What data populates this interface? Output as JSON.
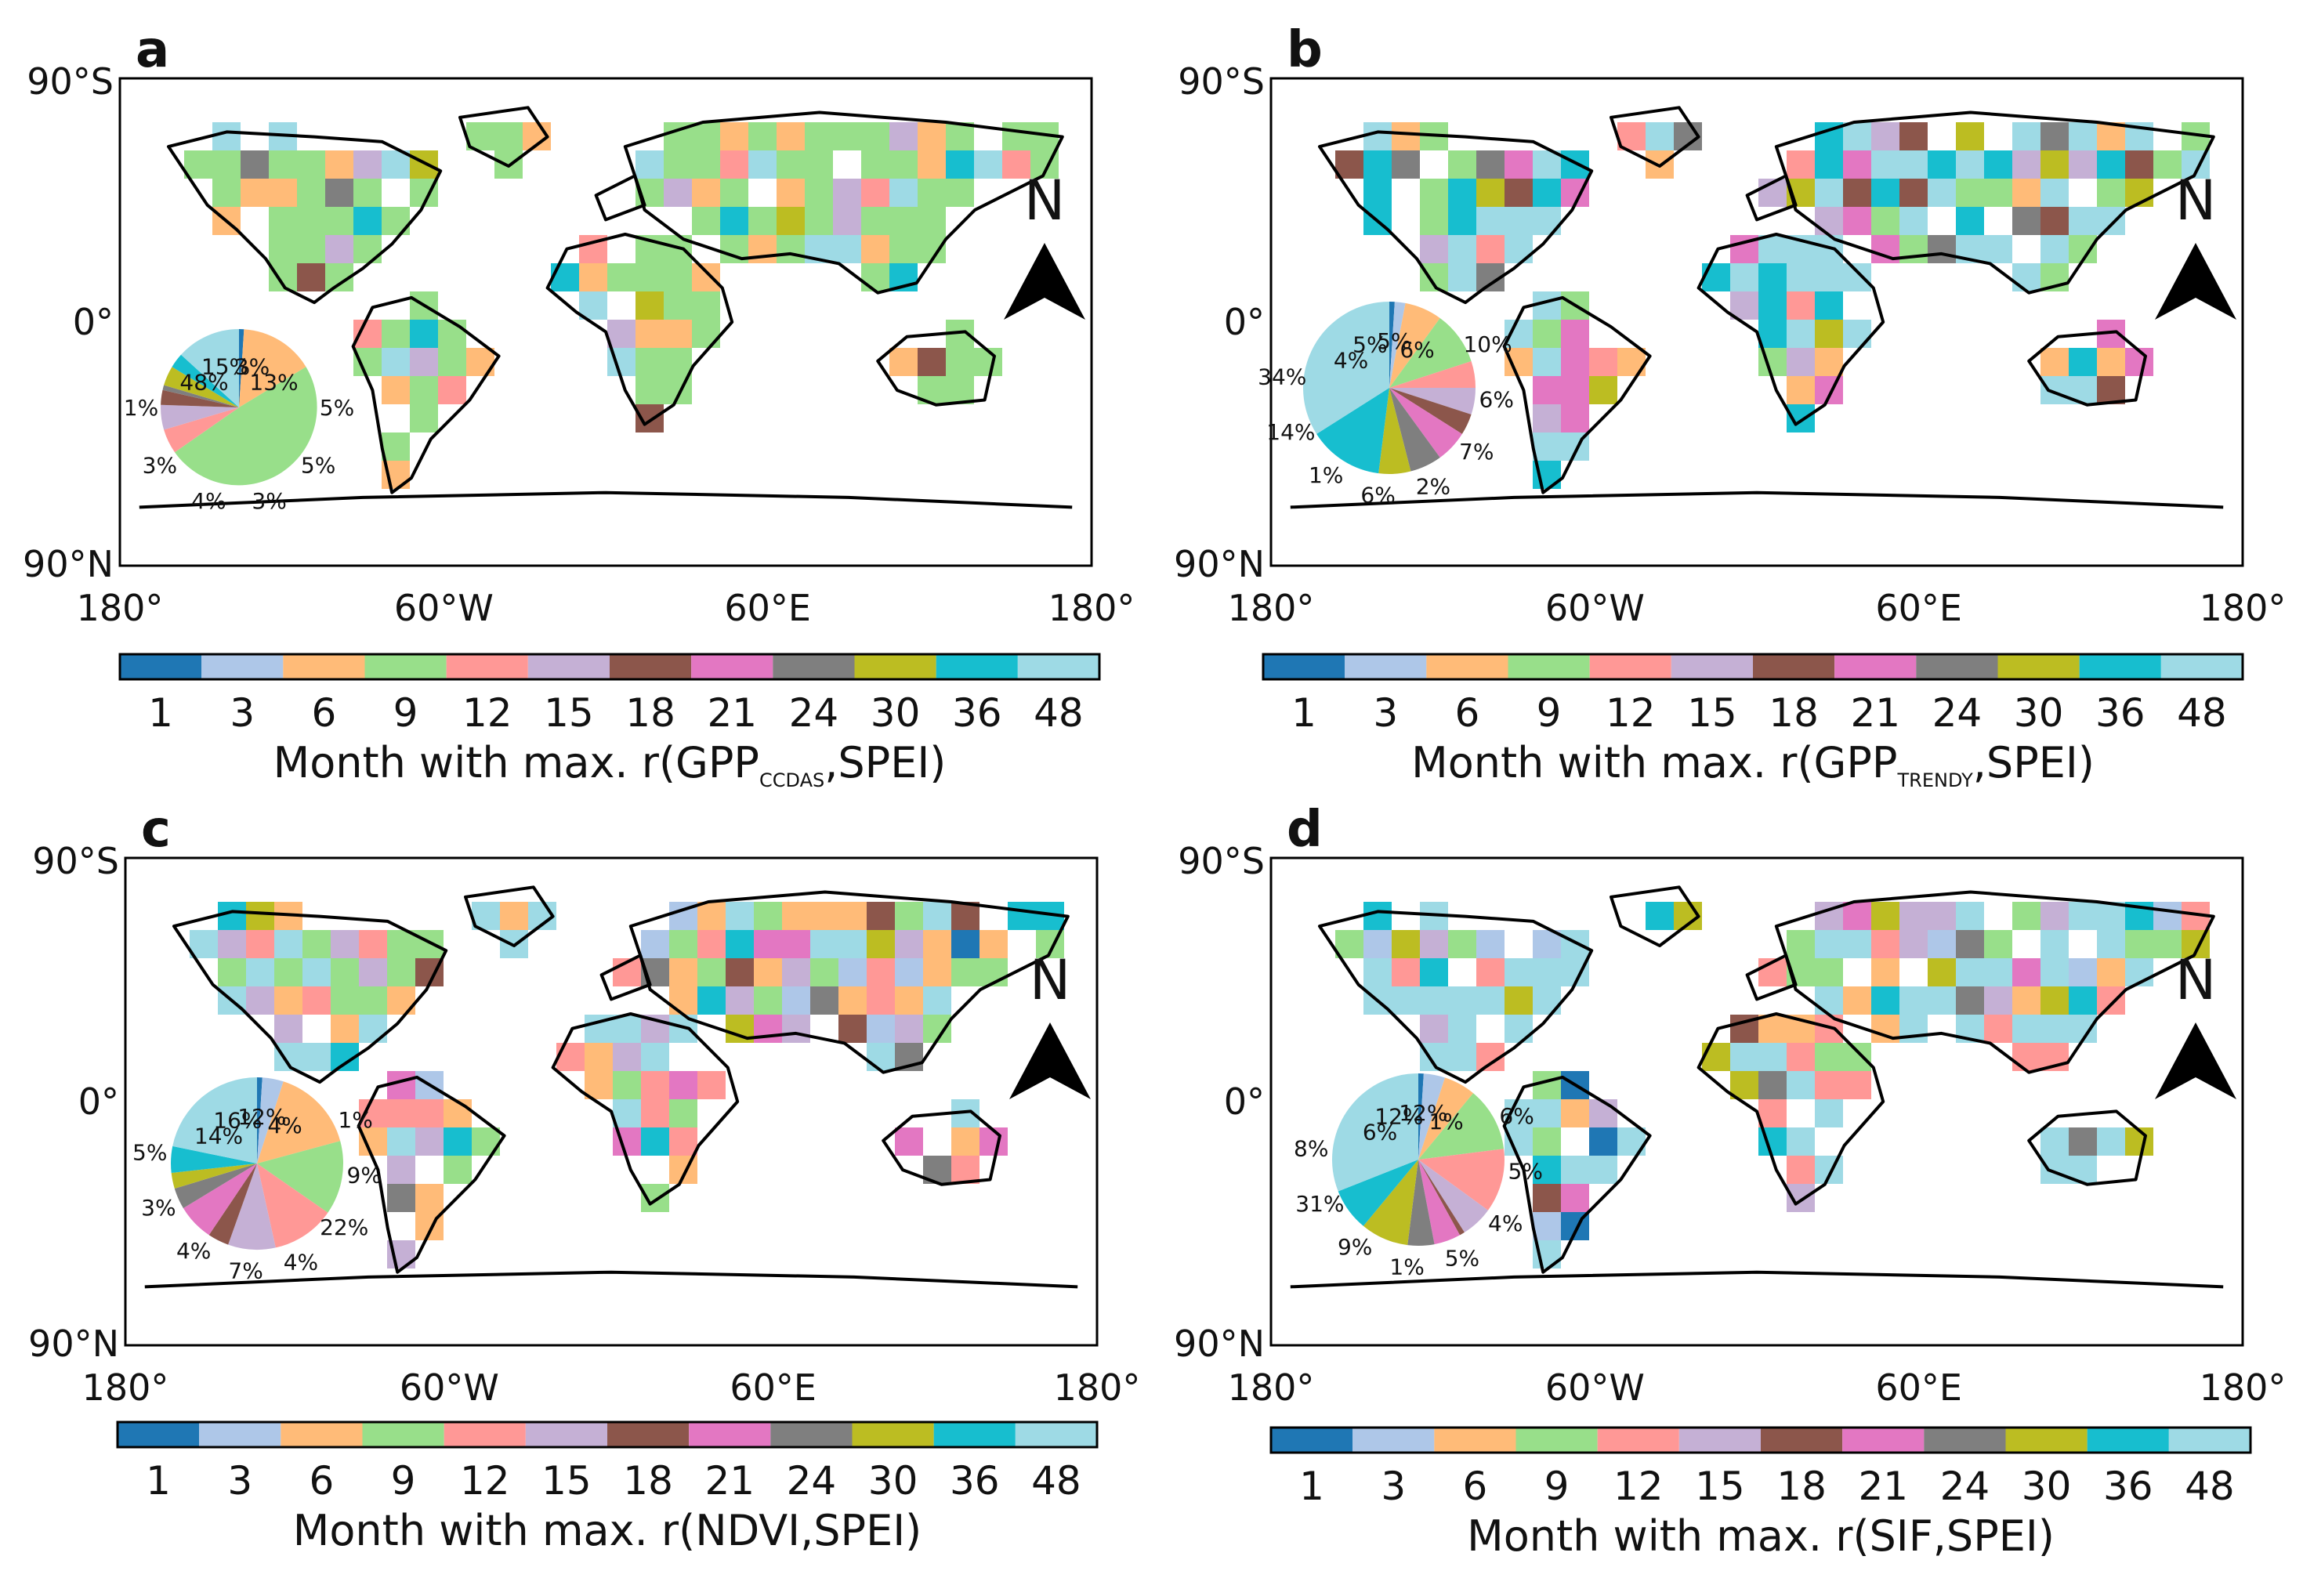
{
  "month_scale": [
    "1",
    "3",
    "6",
    "9",
    "12",
    "15",
    "18",
    "21",
    "24",
    "30",
    "36",
    "48"
  ],
  "colors": [
    "#1f77b4",
    "#aec7e8",
    "#ffbb78",
    "#98df8a",
    "#ff9896",
    "#c5b0d5",
    "#8c564b",
    "#e377c2",
    "#7f7f7f",
    "#bcbd22",
    "#17becf",
    "#9edae5"
  ],
  "axis_labels": {
    "lat_top": "90°S",
    "lat_mid": "0°",
    "lat_bottom": "90°N",
    "lon_ticks": [
      "180°",
      "60°W",
      "60°E",
      "180°"
    ]
  },
  "north_label": "N",
  "panels": [
    {
      "letter": "a",
      "caption_prefix": "Month with max. r(GPP",
      "caption_sub": "CCDAS",
      "caption_suffix": ",SPEI)",
      "pie_values": [
        1,
        0,
        15,
        48,
        5,
        5,
        3,
        0,
        1,
        4,
        3,
        13
      ],
      "pie_labels": [
        {
          "text": "48%"
        },
        {
          "text": "15%"
        },
        {
          "text": "3%"
        },
        {
          "text": "13%"
        },
        {
          "text": "5%"
        },
        {
          "text": "5%"
        },
        {
          "text": "3%"
        },
        {
          "text": "4%"
        },
        {
          "text": "3%"
        },
        {
          "text": "1%"
        }
      ]
    },
    {
      "letter": "b",
      "caption_prefix": "Month with max. r(GPP",
      "caption_sub": "TRENDY",
      "caption_suffix": ",SPEI)",
      "pie_values": [
        1,
        2,
        7,
        10,
        5,
        5,
        4,
        6,
        6,
        6,
        14,
        34
      ],
      "pie_labels": [
        {
          "text": "4%"
        },
        {
          "text": "5%"
        },
        {
          "text": "5%"
        },
        {
          "text": "6%"
        },
        {
          "text": "10%"
        },
        {
          "text": "6%"
        },
        {
          "text": "7%"
        },
        {
          "text": "2%"
        },
        {
          "text": "6%"
        },
        {
          "text": "1%"
        },
        {
          "text": "14%"
        },
        {
          "text": "34%"
        }
      ]
    },
    {
      "letter": "c",
      "caption_prefix": "Month with max. r(NDVI,SPEI)",
      "caption_sub": "",
      "caption_suffix": "",
      "pie_values": [
        1,
        4,
        16,
        14,
        12,
        9,
        4,
        7,
        4,
        3,
        5,
        22
      ],
      "pie_labels": [
        {
          "text": "14%"
        },
        {
          "text": "16%"
        },
        {
          "text": "12%"
        },
        {
          "text": "4%"
        },
        {
          "text": "1%"
        },
        {
          "text": "9%"
        },
        {
          "text": "22%"
        },
        {
          "text": "4%"
        },
        {
          "text": "7%"
        },
        {
          "text": "4%"
        },
        {
          "text": "3%"
        },
        {
          "text": "5%"
        }
      ]
    },
    {
      "letter": "d",
      "caption_prefix": "Month with max. r(SIF,SPEI)",
      "caption_sub": "",
      "caption_suffix": "",
      "pie_values": [
        1,
        4,
        6,
        12,
        12,
        6,
        1,
        5,
        5,
        9,
        8,
        31
      ],
      "pie_labels": [
        {
          "text": "6%"
        },
        {
          "text": "12%"
        },
        {
          "text": "12%"
        },
        {
          "text": "1%"
        },
        {
          "text": "6%"
        },
        {
          "text": "5%"
        },
        {
          "text": "4%"
        },
        {
          "text": "5%"
        },
        {
          "text": "1%"
        },
        {
          "text": "9%"
        },
        {
          "text": "31%"
        },
        {
          "text": "8%"
        }
      ]
    }
  ]
}
